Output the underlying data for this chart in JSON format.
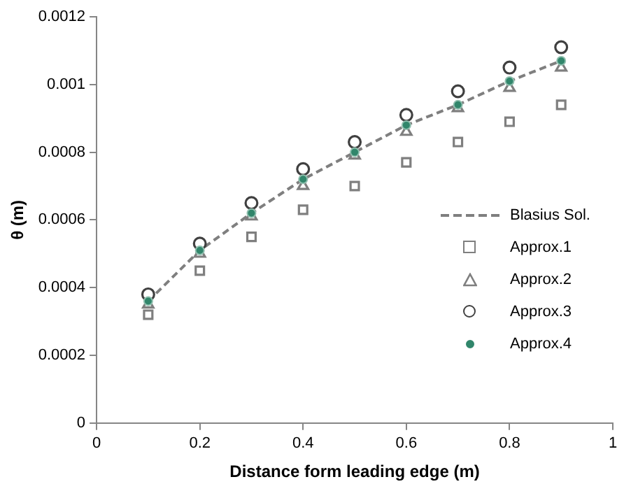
{
  "chart_data": {
    "type": "scatter",
    "xlabel": "Distance form leading edge (m)",
    "ylabel": "θ (m)",
    "x": [
      0.1,
      0.2,
      0.3,
      0.4,
      0.5,
      0.6,
      0.7,
      0.8,
      0.9
    ],
    "xlim": [
      0,
      1
    ],
    "xticks": [
      0,
      0.2,
      0.4,
      0.6,
      0.8,
      1
    ],
    "ylim": [
      0,
      0.0012
    ],
    "yticks": [
      0,
      0.0002,
      0.0004,
      0.0006,
      0.0008,
      0.001,
      0.0012
    ],
    "grid": false,
    "legend": "right",
    "series": [
      {
        "name": "Blasius Sol.",
        "type": "line",
        "line_style": "dashed",
        "marker": "none",
        "color": "#7f7f7f",
        "values": [
          0.00036,
          0.00051,
          0.00062,
          0.00072,
          0.0008,
          0.00088,
          0.00094,
          0.00101,
          0.00107
        ]
      },
      {
        "name": "Approx.1",
        "marker": "square",
        "color": "#7f7f7f",
        "values": [
          0.00032,
          0.00045,
          0.00055,
          0.00063,
          0.0007,
          0.00077,
          0.00083,
          0.00089,
          0.00094
        ]
      },
      {
        "name": "Approx.2",
        "marker": "triangle",
        "color": "#7f7f7f",
        "values": [
          0.00035,
          0.0005,
          0.00061,
          0.0007,
          0.00079,
          0.00086,
          0.00093,
          0.00099,
          0.00105
        ]
      },
      {
        "name": "Approx.3",
        "marker": "circle",
        "color": "#404040",
        "values": [
          0.00038,
          0.00053,
          0.00065,
          0.00075,
          0.00083,
          0.00091,
          0.00098,
          0.00105,
          0.00111
        ]
      },
      {
        "name": "Approx.4",
        "marker": "filled-circle",
        "color": "#31866b",
        "values": [
          0.00036,
          0.00051,
          0.00062,
          0.00072,
          0.0008,
          0.00088,
          0.00094,
          0.00101,
          0.00107
        ]
      }
    ]
  }
}
